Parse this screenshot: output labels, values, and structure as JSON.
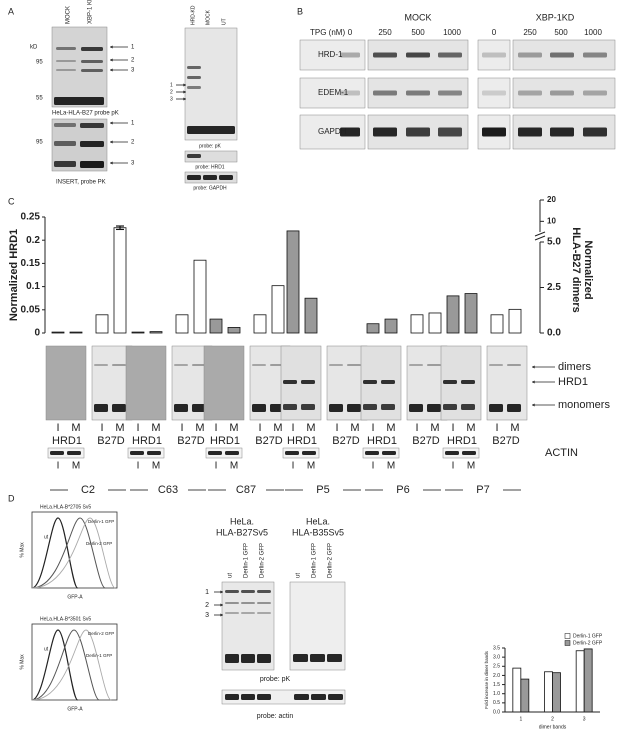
{
  "panel_a": {
    "label": "A",
    "kd": "kD",
    "lanes": [
      "MOCK",
      "XBP-1 KD"
    ],
    "markers": [
      "95",
      "55"
    ],
    "bands": [
      "1",
      "2",
      "3"
    ],
    "caption": "HeLa-HLA-B27 probe pK",
    "insert_marker": "95",
    "insert_caption": "INSERT, probe PK",
    "right_lanes": [
      "HRD-KD",
      "MOCK",
      "UT"
    ],
    "right_captions": [
      "probe: pK",
      "probe: HRD1",
      "probe: GAPDH"
    ]
  },
  "panel_b": {
    "label": "B",
    "tpg": "TPG (nM)",
    "groups": [
      "MOCK",
      "XBP-1KD"
    ],
    "doses": [
      "0",
      "250",
      "500",
      "1000"
    ],
    "rows": [
      "HRD-1",
      "EDEM-1",
      "GAPDH"
    ]
  },
  "panel_c": {
    "label": "C",
    "bands": [
      "dimers",
      "HRD1",
      "monomers"
    ],
    "lanes": [
      "I",
      "M"
    ],
    "actin": "ACTIN"
  },
  "panel_d": {
    "label": "D",
    "flow": [
      {
        "title": "HeLa.HLA-B*2705 Sv5",
        "curves": [
          "ut",
          "Derlin-1 GFP",
          "Derlin-2 GFP"
        ]
      },
      {
        "title": "HeLa.HLA-B*3501 Sv5",
        "curves": [
          "ut",
          "Derlin-2 GFP",
          "Derlin-1 GFP"
        ]
      }
    ],
    "flow_ylabel": "% Max",
    "flow_xlabel": "GFP-A",
    "blot_groups": [
      [
        "HeLa.",
        "HLA-B27Sv5"
      ],
      [
        "HeLa.",
        "HLA-B35Sv5"
      ]
    ],
    "lanes": [
      "ut",
      "Derlin-1 GFP",
      "Derlin-2 GFP"
    ],
    "bands": [
      "1",
      "2",
      "3"
    ],
    "captions": [
      "probe: pK",
      "probe: actin"
    ]
  },
  "chart_data": [
    {
      "type": "bar",
      "ylabel": "Normalized HRD1",
      "y2label": [
        "Normalized",
        "HLA-B27 dimers"
      ],
      "groups": [
        "C2",
        "C63",
        "C87",
        "P5",
        "P6",
        "P7"
      ],
      "categories": [
        "I",
        "M",
        "I",
        "M",
        "I",
        "M",
        "I",
        "M",
        "I",
        "M",
        "I",
        "M",
        "I",
        "M",
        "I",
        "M",
        "I",
        "M",
        "I",
        "M",
        "I",
        "M",
        "I",
        "M"
      ],
      "series": [
        {
          "name": "HRD1",
          "color": "#999999",
          "values": [
            0.002,
            0.002,
            null,
            null,
            0.002,
            0.003,
            null,
            null,
            0.03,
            0.012,
            null,
            null,
            0.22,
            0.075,
            null,
            null,
            0.02,
            0.03,
            null,
            null,
            0.08,
            0.085,
            null,
            null
          ]
        },
        {
          "name": "B27D",
          "color": "#ffffff",
          "axis": "y2",
          "values": [
            null,
            null,
            1.0,
            7,
            null,
            null,
            1.0,
            4.0,
            null,
            null,
            1.0,
            2.6,
            null,
            null,
            null,
            null,
            null,
            null,
            1.0,
            1.1,
            null,
            null,
            1.0,
            1.3
          ],
          "errors": [
            null,
            null,
            null,
            0.8,
            null,
            null,
            null,
            null,
            null,
            null,
            null,
            null,
            null,
            null,
            null,
            null,
            null,
            null,
            null,
            null,
            null,
            null,
            null,
            null
          ]
        }
      ],
      "ylim": [
        0,
        0.25
      ],
      "yticks": [
        0,
        0.05,
        0.1,
        0.15,
        0.2,
        0.25
      ],
      "y2lim": [
        0,
        20
      ],
      "y2break": 5,
      "y2ticks": [
        {
          "value": 0,
          "label": "0.0"
        },
        2.5,
        {
          "value": 5,
          "label": "5.0"
        },
        10,
        20
      ]
    },
    {
      "type": "bar",
      "categories": [
        "1",
        "2",
        "3"
      ],
      "series": [
        {
          "name": "Derlin-1 GFP",
          "color": "#ffffff",
          "values": [
            2.4,
            2.2,
            3.35
          ]
        },
        {
          "name": "Derlin-2 GFP",
          "color": "#999999",
          "values": [
            1.8,
            2.15,
            3.45
          ]
        }
      ],
      "ylim": [
        0,
        3.5
      ],
      "yticks": [
        {
          "value": 0,
          "label": "0.0"
        },
        0.5,
        {
          "value": 1,
          "label": "1.0"
        },
        1.5,
        {
          "value": 2,
          "label": "2.0"
        },
        2.5,
        {
          "value": 3,
          "label": "3.0"
        },
        3.5
      ],
      "ylabel": "Fold increase in dimer bands",
      "xlabel": "dimer bands",
      "legend": "upper left"
    }
  ]
}
